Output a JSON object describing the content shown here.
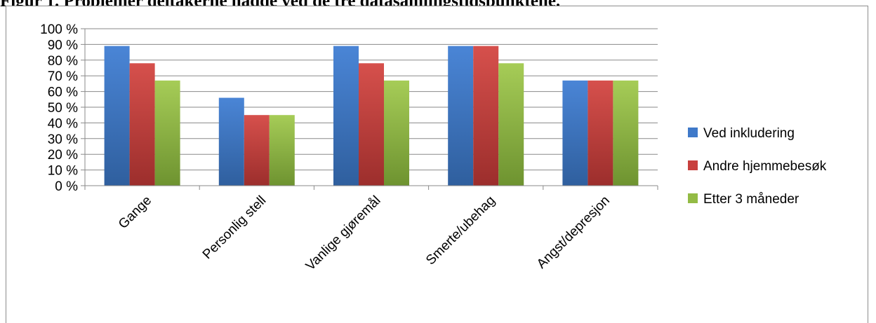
{
  "caption": "Figur 1. Problemer deltakerne hadde ved de tre datasamlingstidspunktene.",
  "chart_data": {
    "type": "bar",
    "title": "",
    "xlabel": "",
    "ylabel": "",
    "ylim": [
      0,
      100
    ],
    "yticks": [
      "0 %",
      "10 %",
      "20 %",
      "30 %",
      "40 %",
      "50 %",
      "60 %",
      "70 %",
      "80 %",
      "90 %",
      "100 %"
    ],
    "grid": true,
    "legend_position": "right",
    "categories": [
      "Gange",
      "Personlig stell",
      "Vanlige gjøremål",
      "Smerte/ubehag",
      "Angst/depresjon"
    ],
    "series": [
      {
        "name": "Ved inkludering",
        "color": "#3f79c9",
        "values": [
          89,
          56,
          89,
          89,
          67
        ]
      },
      {
        "name": "Andre hjemmebesøk",
        "color": "#c8403e",
        "values": [
          78,
          45,
          78,
          89,
          67
        ]
      },
      {
        "name": "Etter 3 måneder",
        "color": "#93bb45",
        "values": [
          67,
          45,
          67,
          78,
          67
        ]
      }
    ]
  }
}
